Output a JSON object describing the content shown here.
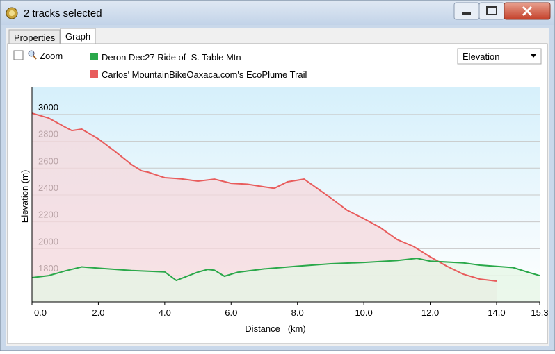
{
  "window": {
    "title": "2 tracks selected"
  },
  "tabs": [
    "Properties",
    "Graph"
  ],
  "zoom_label": "Zoom",
  "dropdown": {
    "selected": "Elevation"
  },
  "chart_data": {
    "type": "area",
    "xlabel": "Distance   (km)",
    "ylabel": "Elevation (m)",
    "xlim": [
      0,
      15.3
    ],
    "ylim": [
      1604,
      3206
    ],
    "xticks": [
      {
        "value": 0,
        "label": "0.0"
      },
      {
        "value": 2,
        "label": "2.0"
      },
      {
        "value": 4,
        "label": "4.0"
      },
      {
        "value": 6,
        "label": "6.0"
      },
      {
        "value": 8,
        "label": "8.0"
      },
      {
        "value": 10,
        "label": "10.0"
      },
      {
        "value": 12,
        "label": "12.0"
      },
      {
        "value": 14,
        "label": "14.0"
      },
      15.3
    ],
    "yticks": [
      1800,
      2000,
      2200,
      2400,
      2600,
      2800,
      3000
    ],
    "grid": true,
    "series": [
      {
        "name": "Deron Dec27 Ride of  S. Table Mtn",
        "color": "#2aa84a",
        "fill": "#e4f5e4",
        "x": [
          0,
          0.5,
          1.0,
          1.5,
          2.0,
          3.0,
          4.0,
          4.35,
          5.0,
          5.3,
          5.5,
          5.8,
          6.2,
          7.0,
          8.0,
          9.0,
          10.0,
          11.0,
          11.6,
          12.0,
          13.0,
          13.5,
          14.5,
          15.0,
          15.3
        ],
        "values": [
          1785,
          1800,
          1835,
          1865,
          1855,
          1838,
          1828,
          1764,
          1826,
          1846,
          1840,
          1795,
          1825,
          1850,
          1870,
          1888,
          1898,
          1912,
          1929,
          1908,
          1895,
          1878,
          1860,
          1821,
          1800
        ]
      },
      {
        "name": "Carlos' MountainBikeOaxaca.com's EcoPlume Trail",
        "color": "#e85c5c",
        "fill": "#f5d8dc",
        "x": [
          0,
          0.5,
          1.0,
          1.2,
          1.5,
          2.0,
          2.5,
          3.0,
          3.3,
          3.5,
          4.0,
          4.5,
          5.0,
          5.5,
          6.0,
          6.5,
          7.0,
          7.3,
          7.7,
          8.2,
          8.5,
          9.0,
          9.5,
          10.0,
          10.5,
          11.0,
          11.5,
          12.0,
          12.5,
          13.0,
          13.5,
          14.0
        ],
        "values": [
          3009,
          2973,
          2906,
          2880,
          2890,
          2818,
          2725,
          2627,
          2580,
          2570,
          2529,
          2520,
          2503,
          2518,
          2487,
          2480,
          2461,
          2450,
          2498,
          2518,
          2466,
          2379,
          2286,
          2224,
          2157,
          2069,
          2017,
          1940,
          1870,
          1810,
          1774,
          1759
        ]
      }
    ]
  }
}
